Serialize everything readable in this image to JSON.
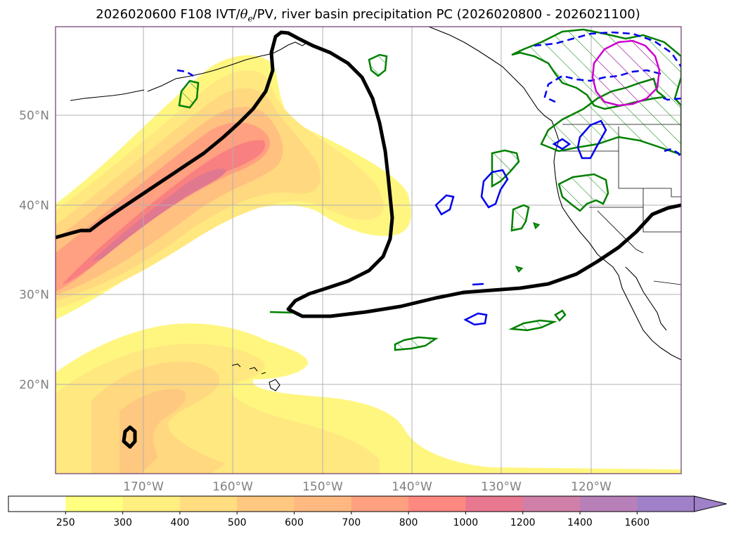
{
  "title": {
    "run": "2026020600 F108 IVT/",
    "theta": "θ",
    "theta_sub": "e",
    "rest": "/PV, river basin precipitation PC (2026020800 - 2026021100)"
  },
  "lat_labels": [
    "20°N",
    "30°N",
    "40°N",
    "50°N"
  ],
  "lon_labels": [
    "170°W",
    "160°W",
    "150°W",
    "140°W",
    "130°W",
    "120°W"
  ],
  "colorbar": {
    "ticks": [
      "250",
      "300",
      "400",
      "500",
      "600",
      "700",
      "800",
      "1000",
      "1200",
      "1400",
      "1600"
    ],
    "colors": [
      "#ffffff",
      "#ffff80",
      "#ffee80",
      "#ffdd80",
      "#ffc880",
      "#ffb880",
      "#ffa080",
      "#ff8880",
      "#e87890",
      "#d080a8",
      "#b880b8",
      "#a080c8"
    ]
  },
  "colors": {
    "ivt_levels": [
      "#fff680",
      "#ffe880",
      "#ffd880",
      "#ffc080",
      "#ffa080",
      "#f07880",
      "#d878a0"
    ],
    "pv_contour": "#000000",
    "precip_green": "#008000",
    "precip_blue": "#0000ee",
    "precip_magenta": "#cc00cc",
    "grid": "#b0b0b0",
    "coast": "#000000"
  }
}
